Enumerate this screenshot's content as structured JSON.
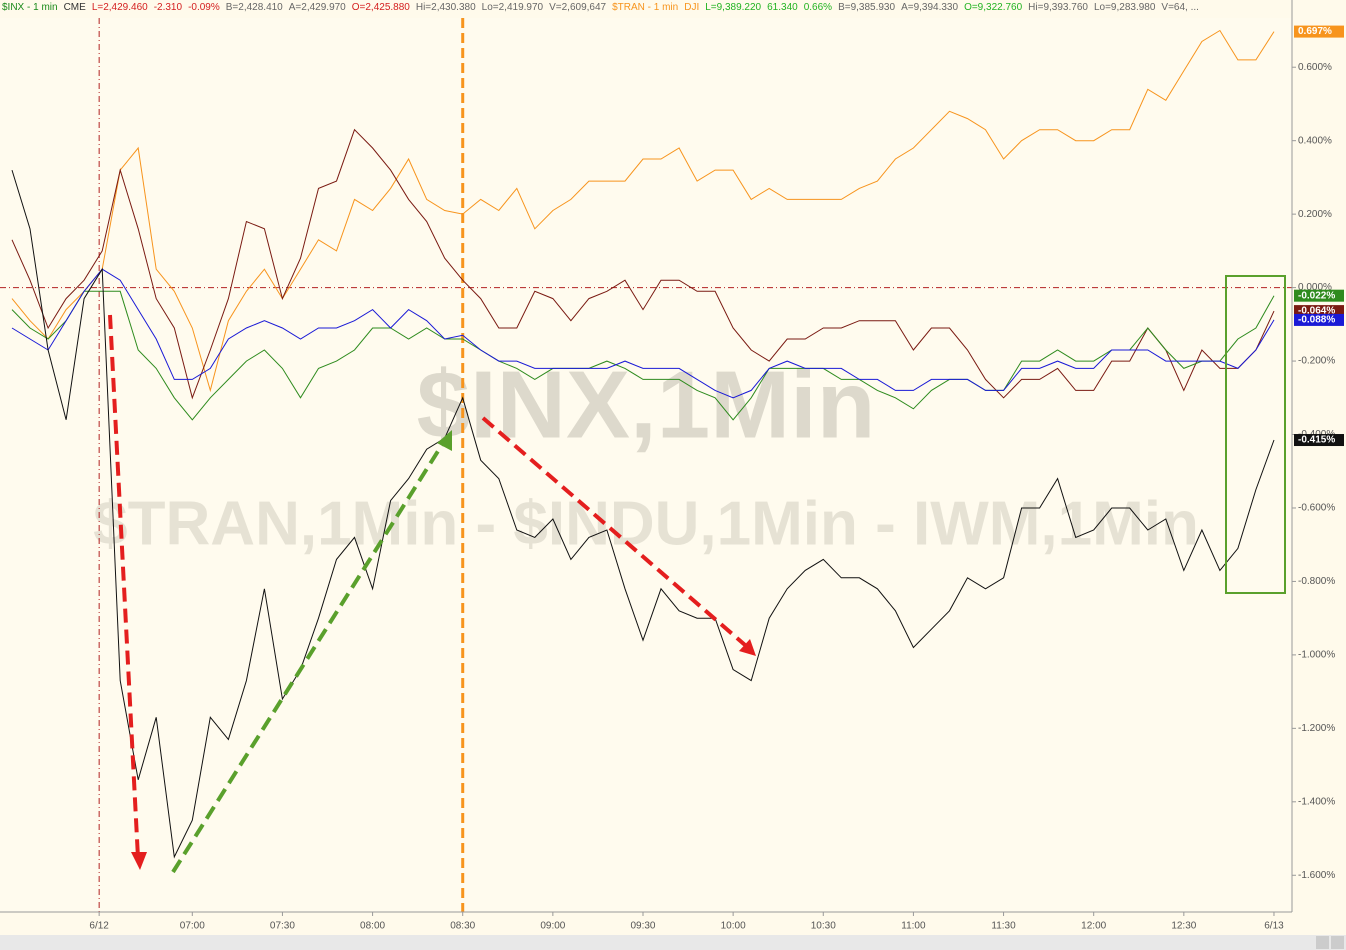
{
  "chart_data": {
    "type": "line",
    "header": [
      {
        "text": "$INX - 1 min",
        "color": "#1a8a1a"
      },
      {
        "text": "CME",
        "color": "#333333"
      },
      {
        "text": "L=2,429.460",
        "color": "#d42020"
      },
      {
        "text": "-2.310",
        "color": "#d42020"
      },
      {
        "text": "-0.09%",
        "color": "#d42020"
      },
      {
        "text": "B=2,428.410",
        "color": "#666666"
      },
      {
        "text": "A=2,429.970",
        "color": "#666666"
      },
      {
        "text": "O=2,425.880",
        "color": "#d42020"
      },
      {
        "text": "Hi=2,430.380",
        "color": "#666666"
      },
      {
        "text": "Lo=2,419.970",
        "color": "#666666"
      },
      {
        "text": "V=2,609,647",
        "color": "#666666"
      },
      {
        "text": "$TRAN - 1 min",
        "color": "#f7941d"
      },
      {
        "text": "DJI",
        "color": "#f7941d"
      },
      {
        "text": "L=9,389.220",
        "color": "#22b322"
      },
      {
        "text": "61.340",
        "color": "#22b322"
      },
      {
        "text": "0.66%",
        "color": "#22b322"
      },
      {
        "text": "B=9,385.930",
        "color": "#666666"
      },
      {
        "text": "A=9,394.330",
        "color": "#666666"
      },
      {
        "text": "O=9,322.760",
        "color": "#22b322"
      },
      {
        "text": "Hi=9,393.760",
        "color": "#666666"
      },
      {
        "text": "Lo=9,283.980",
        "color": "#666666"
      },
      {
        "text": "V=64, ...",
        "color": "#666666"
      }
    ],
    "watermark": [
      "$INX,1Min",
      "$TRAN,1Min - $INDU,1Min - IWM,1Min"
    ],
    "x": [
      -60,
      -54,
      -48,
      -42,
      -36,
      -30,
      -24,
      -18,
      -12,
      -6,
      0,
      6,
      12,
      18,
      24,
      30,
      36,
      42,
      48,
      54,
      60,
      66,
      72,
      78,
      84,
      90,
      96,
      102,
      108,
      114,
      120,
      126,
      132,
      138,
      144,
      150,
      156,
      162,
      168,
      174,
      180,
      186,
      192,
      198,
      204,
      210,
      216,
      222,
      228,
      234,
      240,
      246,
      252,
      258,
      264,
      270,
      276,
      282,
      288,
      294,
      300,
      306,
      312,
      318,
      324,
      330,
      336,
      342,
      348,
      354,
      360
    ],
    "series": [
      {
        "color": "#f7941d",
        "end_label": "0.697%",
        "values": [
          -0.03,
          -0.09,
          -0.14,
          -0.06,
          -0.01,
          0.05,
          0.32,
          0.38,
          0.05,
          -0.01,
          -0.11,
          -0.28,
          -0.09,
          -0.01,
          0.05,
          -0.03,
          0.05,
          0.13,
          0.1,
          0.24,
          0.21,
          0.27,
          0.35,
          0.24,
          0.21,
          0.2,
          0.24,
          0.21,
          0.27,
          0.16,
          0.21,
          0.24,
          0.29,
          0.29,
          0.29,
          0.35,
          0.35,
          0.38,
          0.29,
          0.32,
          0.32,
          0.24,
          0.27,
          0.24,
          0.24,
          0.24,
          0.24,
          0.27,
          0.29,
          0.35,
          0.38,
          0.43,
          0.48,
          0.46,
          0.43,
          0.35,
          0.4,
          0.43,
          0.43,
          0.4,
          0.4,
          0.43,
          0.43,
          0.54,
          0.51,
          0.59,
          0.67,
          0.7,
          0.62,
          0.62,
          0.697
        ]
      },
      {
        "color": "#7a1a12",
        "end_label": "-0.064%",
        "values": [
          0.13,
          0.02,
          -0.11,
          -0.03,
          0.02,
          0.1,
          0.32,
          0.16,
          -0.03,
          -0.11,
          -0.3,
          -0.17,
          -0.03,
          0.18,
          0.16,
          -0.03,
          0.08,
          0.27,
          0.29,
          0.43,
          0.38,
          0.32,
          0.24,
          0.18,
          0.08,
          0.02,
          -0.03,
          -0.11,
          -0.11,
          -0.01,
          -0.03,
          -0.09,
          -0.03,
          -0.01,
          0.02,
          -0.06,
          0.02,
          0.02,
          -0.01,
          -0.01,
          -0.11,
          -0.17,
          -0.2,
          -0.14,
          -0.14,
          -0.11,
          -0.11,
          -0.09,
          -0.09,
          -0.09,
          -0.17,
          -0.11,
          -0.11,
          -0.17,
          -0.25,
          -0.3,
          -0.25,
          -0.25,
          -0.22,
          -0.28,
          -0.28,
          -0.2,
          -0.2,
          -0.11,
          -0.17,
          -0.28,
          -0.17,
          -0.22,
          -0.22,
          -0.17,
          -0.064
        ]
      },
      {
        "color": "#2e8b1e",
        "end_label": "-0.022%",
        "values": [
          -0.06,
          -0.11,
          -0.14,
          -0.09,
          -0.01,
          -0.01,
          -0.01,
          -0.17,
          -0.22,
          -0.3,
          -0.36,
          -0.3,
          -0.25,
          -0.2,
          -0.17,
          -0.22,
          -0.3,
          -0.22,
          -0.2,
          -0.17,
          -0.11,
          -0.11,
          -0.14,
          -0.11,
          -0.14,
          -0.14,
          -0.17,
          -0.2,
          -0.22,
          -0.25,
          -0.22,
          -0.22,
          -0.22,
          -0.2,
          -0.22,
          -0.25,
          -0.25,
          -0.25,
          -0.28,
          -0.3,
          -0.36,
          -0.3,
          -0.22,
          -0.22,
          -0.22,
          -0.22,
          -0.25,
          -0.25,
          -0.28,
          -0.3,
          -0.33,
          -0.28,
          -0.25,
          -0.25,
          -0.28,
          -0.28,
          -0.2,
          -0.2,
          -0.17,
          -0.2,
          -0.2,
          -0.17,
          -0.17,
          -0.11,
          -0.17,
          -0.22,
          -0.2,
          -0.2,
          -0.14,
          -0.11,
          -0.022
        ]
      },
      {
        "color": "#1a1ad6",
        "end_label": "-0.088%",
        "values": [
          -0.11,
          -0.14,
          -0.17,
          -0.09,
          -0.01,
          0.05,
          0.02,
          -0.06,
          -0.14,
          -0.25,
          -0.25,
          -0.22,
          -0.14,
          -0.11,
          -0.09,
          -0.11,
          -0.14,
          -0.11,
          -0.11,
          -0.09,
          -0.06,
          -0.11,
          -0.06,
          -0.09,
          -0.14,
          -0.13,
          -0.17,
          -0.2,
          -0.2,
          -0.22,
          -0.22,
          -0.22,
          -0.22,
          -0.22,
          -0.2,
          -0.22,
          -0.22,
          -0.22,
          -0.25,
          -0.28,
          -0.3,
          -0.28,
          -0.22,
          -0.2,
          -0.22,
          -0.22,
          -0.22,
          -0.25,
          -0.25,
          -0.28,
          -0.28,
          -0.25,
          -0.25,
          -0.25,
          -0.28,
          -0.28,
          -0.22,
          -0.22,
          -0.2,
          -0.22,
          -0.22,
          -0.17,
          -0.17,
          -0.17,
          -0.2,
          -0.2,
          -0.2,
          -0.2,
          -0.22,
          -0.17,
          -0.088
        ]
      },
      {
        "color": "#111111",
        "end_label": "-0.415%",
        "values": [
          0.32,
          0.16,
          -0.17,
          -0.36,
          -0.03,
          0.05,
          -1.07,
          -1.34,
          -1.17,
          -1.55,
          -1.45,
          -1.17,
          -1.23,
          -1.07,
          -0.82,
          -1.12,
          -1.04,
          -0.9,
          -0.74,
          -0.68,
          -0.82,
          -0.58,
          -0.52,
          -0.44,
          -0.41,
          -0.3,
          -0.47,
          -0.52,
          -0.66,
          -0.68,
          -0.63,
          -0.74,
          -0.68,
          -0.66,
          -0.82,
          -0.96,
          -0.82,
          -0.88,
          -0.9,
          -0.9,
          -1.04,
          -1.07,
          -0.9,
          -0.82,
          -0.77,
          -0.74,
          -0.79,
          -0.79,
          -0.82,
          -0.88,
          -0.98,
          -0.93,
          -0.88,
          -0.79,
          -0.82,
          -0.79,
          -0.6,
          -0.6,
          -0.52,
          -0.68,
          -0.66,
          -0.6,
          -0.6,
          -0.66,
          -0.63,
          -0.77,
          -0.66,
          -0.77,
          -0.71,
          -0.55,
          -0.415
        ]
      }
    ],
    "xlim": [
      -64,
      366
    ],
    "xticks": [
      {
        "value": -31,
        "label": "6/12"
      },
      {
        "value": 0,
        "label": "07:00"
      },
      {
        "value": 30,
        "label": "07:30"
      },
      {
        "value": 60,
        "label": "08:00"
      },
      {
        "value": 90,
        "label": "08:30"
      },
      {
        "value": 120,
        "label": "09:00"
      },
      {
        "value": 150,
        "label": "09:30"
      },
      {
        "value": 180,
        "label": "10:00"
      },
      {
        "value": 210,
        "label": "10:30"
      },
      {
        "value": 240,
        "label": "11:00"
      },
      {
        "value": 270,
        "label": "11:30"
      },
      {
        "value": 300,
        "label": "12:00"
      },
      {
        "value": 330,
        "label": "12:30"
      },
      {
        "value": 360,
        "label": "6/13"
      }
    ],
    "ylim": [
      -1.7,
      0.734
    ],
    "yticks": [
      {
        "value": 0.6,
        "label": "0.600%"
      },
      {
        "value": 0.4,
        "label": "0.400%"
      },
      {
        "value": 0.2,
        "label": "0.200%"
      },
      {
        "value": 0,
        "label": "0.000%"
      },
      {
        "value": -0.2,
        "label": "-0.200%"
      },
      {
        "value": -0.4,
        "label": "-0.400%"
      },
      {
        "value": -0.6,
        "label": "-0.600%"
      },
      {
        "value": -0.8,
        "label": "-0.800%"
      },
      {
        "value": -1,
        "label": "-1.000%"
      },
      {
        "value": -1.2,
        "label": "-1.200%"
      },
      {
        "value": -1.4,
        "label": "-1.400%"
      },
      {
        "value": -1.6,
        "label": "-1.600%"
      }
    ],
    "hline": {
      "y": 0,
      "color": "#b22222"
    },
    "vlines": [
      {
        "x": -31,
        "color": "#b22222"
      },
      {
        "x": 90,
        "color": "#f7941d"
      }
    ]
  }
}
